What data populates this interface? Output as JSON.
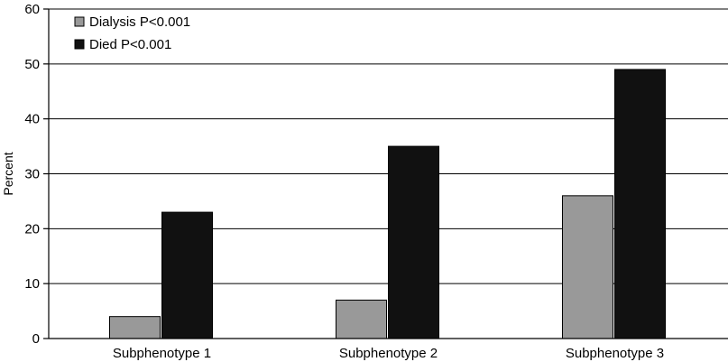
{
  "chart_data": {
    "type": "bar",
    "categories": [
      "Subphenotype 1",
      "Subphenotype 2",
      "Subphenotype 3"
    ],
    "series": [
      {
        "name": "Dialysis P<0.001",
        "values": [
          4,
          7,
          26
        ],
        "color": "#999999"
      },
      {
        "name": "Died P<0.001",
        "values": [
          23,
          35,
          49
        ],
        "color": "#111111"
      }
    ],
    "ylabel": "Percent",
    "ylim": [
      0,
      60
    ],
    "yticks": [
      0,
      10,
      20,
      30,
      40,
      50,
      60
    ],
    "grid": true,
    "legend_position": "top-left"
  }
}
